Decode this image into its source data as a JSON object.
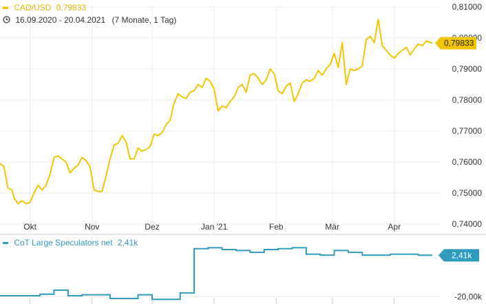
{
  "main_legend": {
    "symbol": "CAD/USD",
    "value": "0,79833",
    "date_range": "16.09.2020 - 20.04.2021",
    "duration": "(7 Monate, 1 Tag)",
    "color": "#f2c500",
    "icon": "clock-icon"
  },
  "cot_legend": {
    "label": "CoT Large Speculators net",
    "value": "2,41k",
    "color": "#2e9bbf"
  },
  "price_badge": "0,79833",
  "cot_badge": "2,41k",
  "chart_data": [
    {
      "type": "line",
      "title": "CAD/USD",
      "x_ticks": [
        "Okt",
        "Nov",
        "Dez",
        "Jan '21",
        "Feb",
        "Mär",
        "Apr"
      ],
      "y_ticks": [
        "0,81000",
        "0,80000",
        "0,79000",
        "0,78000",
        "0,77000",
        "0,76000",
        "0,75000",
        "0,74000"
      ],
      "ylim": [
        0.738,
        0.812
      ],
      "xlim": [
        "2020-09-16",
        "2021-04-20"
      ],
      "series": [
        {
          "name": "CAD/USD",
          "color": "#f2c500",
          "points": [
            [
              "2020-09-16",
              0.7595
            ],
            [
              "2020-09-18",
              0.7585
            ],
            [
              "2020-09-20",
              0.7515
            ],
            [
              "2020-09-22",
              0.751
            ],
            [
              "2020-09-23",
              0.7485
            ],
            [
              "2020-09-25",
              0.7465
            ],
            [
              "2020-09-27",
              0.7475
            ],
            [
              "2020-09-29",
              0.7465
            ],
            [
              "2020-10-01",
              0.747
            ],
            [
              "2020-10-03",
              0.75
            ],
            [
              "2020-10-05",
              0.7525
            ],
            [
              "2020-10-07",
              0.751
            ],
            [
              "2020-10-09",
              0.7525
            ],
            [
              "2020-10-11",
              0.756
            ],
            [
              "2020-10-13",
              0.7615
            ],
            [
              "2020-10-15",
              0.762
            ],
            [
              "2020-10-17",
              0.761
            ],
            [
              "2020-10-19",
              0.76
            ],
            [
              "2020-10-21",
              0.7565
            ],
            [
              "2020-10-23",
              0.758
            ],
            [
              "2020-10-25",
              0.759
            ],
            [
              "2020-10-27",
              0.7615
            ],
            [
              "2020-10-29",
              0.7605
            ],
            [
              "2020-10-31",
              0.7585
            ],
            [
              "2020-11-02",
              0.751
            ],
            [
              "2020-11-04",
              0.7505
            ],
            [
              "2020-11-06",
              0.7505
            ],
            [
              "2020-11-08",
              0.7555
            ],
            [
              "2020-11-10",
              0.761
            ],
            [
              "2020-11-12",
              0.7655
            ],
            [
              "2020-11-14",
              0.766
            ],
            [
              "2020-11-16",
              0.7685
            ],
            [
              "2020-11-18",
              0.7665
            ],
            [
              "2020-11-20",
              0.761
            ],
            [
              "2020-11-22",
              0.761
            ],
            [
              "2020-11-24",
              0.7645
            ],
            [
              "2020-11-26",
              0.7635
            ],
            [
              "2020-11-28",
              0.764
            ],
            [
              "2020-11-30",
              0.765
            ],
            [
              "2020-12-02",
              0.769
            ],
            [
              "2020-12-04",
              0.7685
            ],
            [
              "2020-12-06",
              0.7695
            ],
            [
              "2020-12-08",
              0.772
            ],
            [
              "2020-12-10",
              0.7735
            ],
            [
              "2020-12-12",
              0.779
            ],
            [
              "2020-12-14",
              0.782
            ],
            [
              "2020-12-16",
              0.781
            ],
            [
              "2020-12-18",
              0.7805
            ],
            [
              "2020-12-20",
              0.7825
            ],
            [
              "2020-12-22",
              0.783
            ],
            [
              "2020-12-24",
              0.785
            ],
            [
              "2020-12-26",
              0.784
            ],
            [
              "2020-12-28",
              0.787
            ],
            [
              "2020-12-30",
              0.786
            ],
            [
              "2021-01-01",
              0.7835
            ],
            [
              "2021-01-03",
              0.7765
            ],
            [
              "2021-01-05",
              0.778
            ],
            [
              "2021-01-07",
              0.7775
            ],
            [
              "2021-01-09",
              0.7795
            ],
            [
              "2021-01-11",
              0.781
            ],
            [
              "2021-01-13",
              0.784
            ],
            [
              "2021-01-15",
              0.785
            ],
            [
              "2021-01-17",
              0.7825
            ],
            [
              "2021-01-19",
              0.788
            ],
            [
              "2021-01-21",
              0.7885
            ],
            [
              "2021-01-23",
              0.787
            ],
            [
              "2021-01-25",
              0.785
            ],
            [
              "2021-01-27",
              0.7865
            ],
            [
              "2021-01-29",
              0.79
            ],
            [
              "2021-01-31",
              0.7885
            ],
            [
              "2021-02-02",
              0.783
            ],
            [
              "2021-02-04",
              0.782
            ],
            [
              "2021-02-06",
              0.7845
            ],
            [
              "2021-02-08",
              0.7855
            ],
            [
              "2021-02-10",
              0.7795
            ],
            [
              "2021-02-12",
              0.782
            ],
            [
              "2021-02-14",
              0.7855
            ],
            [
              "2021-02-16",
              0.7865
            ],
            [
              "2021-02-18",
              0.786
            ],
            [
              "2021-02-20",
              0.787
            ],
            [
              "2021-02-22",
              0.7895
            ],
            [
              "2021-02-24",
              0.788
            ],
            [
              "2021-02-26",
              0.79
            ],
            [
              "2021-02-28",
              0.7915
            ],
            [
              "2021-03-02",
              0.795
            ],
            [
              "2021-03-04",
              0.7905
            ],
            [
              "2021-03-06",
              0.7985
            ],
            [
              "2021-03-08",
              0.785
            ],
            [
              "2021-03-10",
              0.79
            ],
            [
              "2021-03-12",
              0.7895
            ],
            [
              "2021-03-14",
              0.79
            ],
            [
              "2021-03-16",
              0.791
            ],
            [
              "2021-03-18",
              0.7995
            ],
            [
              "2021-03-20",
              0.8005
            ],
            [
              "2021-03-22",
              0.7985
            ],
            [
              "2021-03-24",
              0.806
            ],
            [
              "2021-03-26",
              0.7975
            ],
            [
              "2021-03-28",
              0.796
            ],
            [
              "2021-03-30",
              0.7945
            ],
            [
              "2021-04-01",
              0.7935
            ],
            [
              "2021-04-03",
              0.795
            ],
            [
              "2021-04-05",
              0.796
            ],
            [
              "2021-04-07",
              0.797
            ],
            [
              "2021-04-09",
              0.7945
            ],
            [
              "2021-04-11",
              0.7965
            ],
            [
              "2021-04-13",
              0.798
            ],
            [
              "2021-04-15",
              0.7975
            ],
            [
              "2021-04-17",
              0.799
            ],
            [
              "2021-04-20",
              0.7983
            ]
          ]
        }
      ]
    },
    {
      "type": "line",
      "title": "CoT Large Speculators net",
      "y_ticks": [
        "-20,00k"
      ],
      "ylim": [
        -24,
        10
      ],
      "series": [
        {
          "name": "CoT Large Speculators net",
          "color": "#2e9bbf",
          "step": true,
          "points": [
            [
              "2020-09-15",
              -19.5
            ],
            [
              "2020-09-29",
              -19.5
            ],
            [
              "2020-10-06",
              -18.7
            ],
            [
              "2020-10-13",
              -16.5
            ],
            [
              "2020-10-20",
              -19.5
            ],
            [
              "2020-10-27",
              -19.0
            ],
            [
              "2020-11-03",
              -19.0
            ],
            [
              "2020-11-10",
              -21.0
            ],
            [
              "2020-11-17",
              -21.0
            ],
            [
              "2020-11-24",
              -19.0
            ],
            [
              "2020-12-01",
              -21.5
            ],
            [
              "2020-12-08",
              -21.5
            ],
            [
              "2020-12-15",
              -18.0
            ],
            [
              "2020-12-22",
              6.0
            ],
            [
              "2020-12-29",
              6.5
            ],
            [
              "2021-01-05",
              5.5
            ],
            [
              "2021-01-12",
              5.0
            ],
            [
              "2021-01-19",
              4.0
            ],
            [
              "2021-01-26",
              5.5
            ],
            [
              "2021-02-02",
              6.0
            ],
            [
              "2021-02-09",
              6.5
            ],
            [
              "2021-02-16",
              3.0
            ],
            [
              "2021-02-23",
              2.5
            ],
            [
              "2021-03-02",
              5.0
            ],
            [
              "2021-03-09",
              4.0
            ],
            [
              "2021-03-16",
              2.5
            ],
            [
              "2021-03-23",
              2.5
            ],
            [
              "2021-03-30",
              3.0
            ],
            [
              "2021-04-06",
              3.0
            ],
            [
              "2021-04-13",
              2.41
            ],
            [
              "2021-04-20",
              2.41
            ]
          ]
        }
      ]
    }
  ]
}
